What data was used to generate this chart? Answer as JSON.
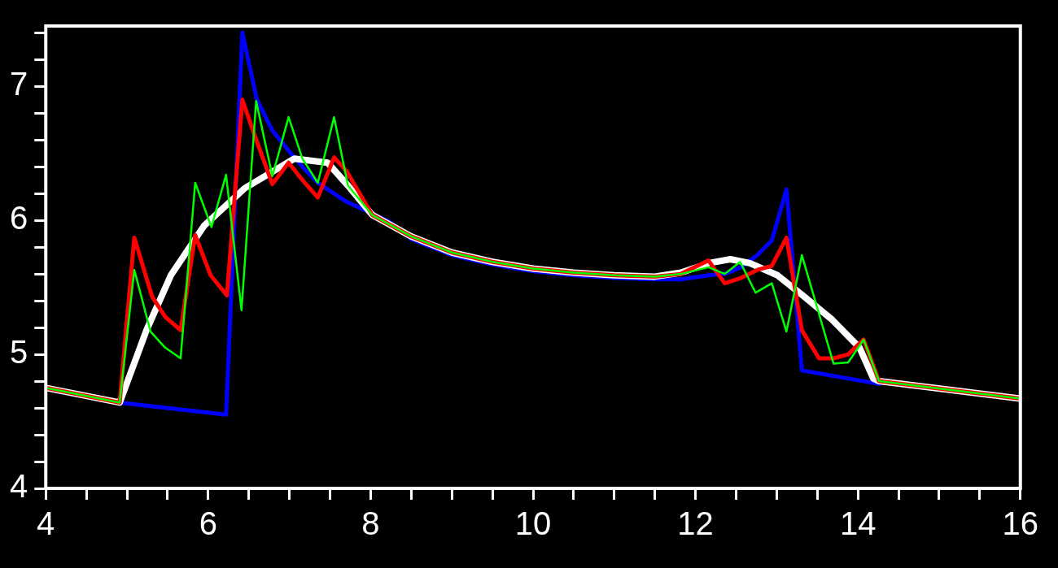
{
  "chart_data": {
    "type": "line",
    "xlim": [
      4,
      16
    ],
    "ylim": [
      4,
      7.45
    ],
    "xticks": [
      4,
      {
        "value": 4.5,
        "label": null
      },
      {
        "value": 5,
        "label": null
      },
      {
        "value": 5.5,
        "label": null
      },
      6,
      {
        "value": 6.5,
        "label": null
      },
      {
        "value": 7,
        "label": null
      },
      {
        "value": 7.5,
        "label": null
      },
      8,
      {
        "value": 8.5,
        "label": null
      },
      {
        "value": 9,
        "label": null
      },
      {
        "value": 9.5,
        "label": null
      },
      10,
      {
        "value": 10.5,
        "label": null
      },
      {
        "value": 11,
        "label": null
      },
      {
        "value": 11.5,
        "label": null
      },
      12,
      {
        "value": 12.5,
        "label": null
      },
      {
        "value": 13,
        "label": null
      },
      {
        "value": 13.5,
        "label": null
      },
      14,
      {
        "value": 14.5,
        "label": null
      },
      {
        "value": 15,
        "label": null
      },
      {
        "value": 15.5,
        "label": null
      },
      16
    ],
    "yticks": [
      4,
      {
        "value": 4.2,
        "label": null
      },
      {
        "value": 4.4,
        "label": null
      },
      {
        "value": 4.6,
        "label": null
      },
      {
        "value": 4.8,
        "label": null
      },
      5,
      {
        "value": 5.2,
        "label": null
      },
      {
        "value": 5.4,
        "label": null
      },
      {
        "value": 5.6,
        "label": null
      },
      {
        "value": 5.8,
        "label": null
      },
      6,
      {
        "value": 6.2,
        "label": null
      },
      {
        "value": 6.4,
        "label": null
      },
      {
        "value": 6.6,
        "label": null
      },
      {
        "value": 6.8,
        "label": null
      },
      7,
      {
        "value": 7.2,
        "label": null
      },
      {
        "value": 7.4,
        "label": null
      }
    ],
    "grid": false,
    "legend": false,
    "marker": "none",
    "line_style": "solid",
    "series": [
      {
        "color": "#0000ff",
        "x": [
          4.91,
          6.22,
          6.42,
          6.6,
          6.79,
          6.99,
          7.16,
          7.35,
          7.7,
          8.23,
          8.5,
          9,
          9.5,
          10,
          10.5,
          11,
          11.5,
          11.82,
          12.16,
          12.36,
          12.56,
          12.76,
          12.94,
          13.12,
          13.31,
          14.26
        ],
        "values": [
          4.64,
          4.55,
          7.4,
          6.9,
          6.67,
          6.52,
          6.4,
          6.28,
          6.14,
          5.99,
          5.86,
          5.74,
          5.67,
          5.62,
          5.59,
          5.57,
          5.56,
          5.56,
          5.59,
          5.6,
          5.65,
          5.74,
          5.85,
          6.23,
          4.88,
          4.78
        ]
      },
      {
        "color": "#ffffff",
        "x": [
          4,
          4.91,
          5.24,
          5.54,
          5.95,
          6.45,
          7.06,
          7.47,
          7.72,
          8.02,
          8.5,
          9,
          9.5,
          10,
          10.5,
          11,
          11.5,
          11.82,
          12.16,
          12.43,
          12.67,
          13.01,
          13.34,
          13.68,
          14.02,
          14.19,
          14.26,
          16
        ],
        "values": [
          4.75,
          4.64,
          5.18,
          5.59,
          5.96,
          6.24,
          6.46,
          6.43,
          6.26,
          6.04,
          5.88,
          5.76,
          5.69,
          5.64,
          5.61,
          5.59,
          5.58,
          5.61,
          5.68,
          5.71,
          5.68,
          5.59,
          5.43,
          5.26,
          5.05,
          4.82,
          4.8,
          4.67
        ]
      },
      {
        "color": "#ff0000",
        "x": [
          4,
          4.91,
          5.09,
          5.31,
          5.47,
          5.66,
          5.84,
          6.03,
          6.23,
          6.42,
          6.58,
          6.79,
          6.99,
          7.16,
          7.35,
          7.55,
          7.7,
          8.02,
          8.5,
          9,
          9.5,
          10,
          10.5,
          11,
          11.5,
          11.82,
          12.16,
          12.36,
          12.56,
          12.76,
          12.94,
          13.12,
          13.31,
          13.52,
          13.7,
          13.88,
          14.07,
          14.26,
          16
        ],
        "values": [
          4.75,
          4.64,
          5.87,
          5.43,
          5.28,
          5.18,
          5.89,
          5.59,
          5.44,
          6.9,
          6.62,
          6.27,
          6.43,
          6.3,
          6.17,
          6.47,
          6.37,
          6.04,
          5.88,
          5.76,
          5.69,
          5.64,
          5.61,
          5.59,
          5.58,
          5.6,
          5.7,
          5.53,
          5.57,
          5.63,
          5.66,
          5.87,
          5.18,
          4.97,
          4.97,
          5,
          5.11,
          4.8,
          4.67
        ]
      },
      {
        "color": "#00ff00",
        "x": [
          4,
          4.91,
          5.09,
          5.29,
          5.47,
          5.66,
          5.84,
          6.04,
          6.22,
          6.41,
          6.59,
          6.79,
          6.99,
          7.16,
          7.35,
          7.55,
          7.72,
          8.02,
          8.5,
          9,
          9.5,
          10,
          10.5,
          11,
          11.5,
          11.82,
          12.16,
          12.36,
          12.55,
          12.74,
          12.94,
          13.12,
          13.31,
          13.7,
          13.88,
          14.07,
          14.26,
          16
        ],
        "values": [
          4.75,
          4.64,
          5.63,
          5.17,
          5.05,
          4.97,
          6.28,
          5.95,
          6.34,
          5.33,
          6.89,
          6.33,
          6.77,
          6.46,
          6.28,
          6.77,
          6.26,
          6.04,
          5.88,
          5.76,
          5.69,
          5.64,
          5.61,
          5.59,
          5.58,
          5.6,
          5.65,
          5.6,
          5.69,
          5.46,
          5.53,
          5.17,
          5.74,
          4.93,
          4.94,
          5.11,
          4.8,
          4.67
        ]
      }
    ]
  }
}
